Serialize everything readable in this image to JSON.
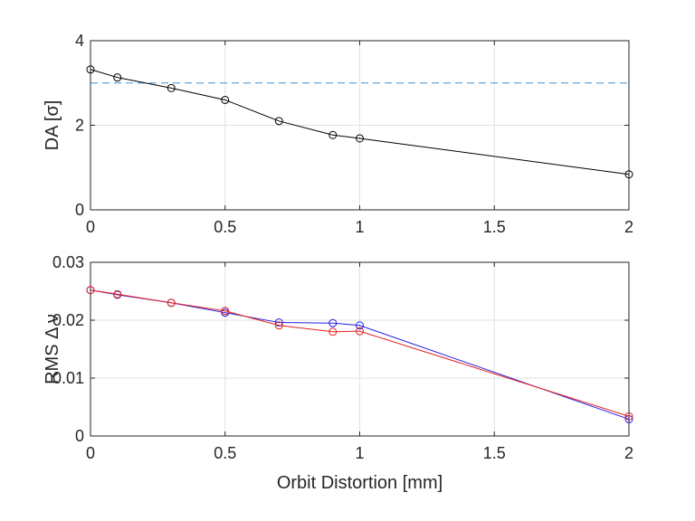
{
  "chart_data": [
    {
      "type": "line",
      "title": "",
      "xlabel": "",
      "ylabel": "DA [σ]",
      "xlim": [
        0,
        2
      ],
      "ylim": [
        0,
        4
      ],
      "xticks": [
        0,
        0.5,
        1,
        1.5,
        2
      ],
      "xtick_labels": [
        "0",
        "0.5",
        "1",
        "1.5",
        "2"
      ],
      "yticks": [
        0,
        2,
        4
      ],
      "ytick_labels": [
        "0",
        "2",
        "4"
      ],
      "grid": true,
      "reference_line": {
        "y": 3,
        "style": "dashed",
        "color": "#3d8fd1"
      },
      "series": [
        {
          "name": "DA",
          "color": "#000000",
          "x": [
            0,
            0.1,
            0.3,
            0.5,
            0.7,
            0.9,
            1.0,
            2.0
          ],
          "y": [
            3.32,
            3.13,
            2.88,
            2.6,
            2.1,
            1.77,
            1.69,
            0.84
          ]
        }
      ]
    },
    {
      "type": "line",
      "title": "",
      "xlabel": "Orbit Distortion [mm]",
      "ylabel": "RMS Δ ν",
      "xlim": [
        0,
        2
      ],
      "ylim": [
        0,
        0.03
      ],
      "xticks": [
        0,
        0.5,
        1,
        1.5,
        2
      ],
      "xtick_labels": [
        "0",
        "0.5",
        "1",
        "1.5",
        "2"
      ],
      "yticks": [
        0,
        0.01,
        0.02,
        0.03
      ],
      "ytick_labels": [
        "0",
        "0.01",
        "0.02",
        "0.03"
      ],
      "grid": true,
      "series": [
        {
          "name": "RMS Δν (blue)",
          "color": "#1f1fe6",
          "x": [
            0,
            0.1,
            0.3,
            0.5,
            0.7,
            0.9,
            1.0,
            2.0
          ],
          "y": [
            0.0252,
            0.0244,
            0.023,
            0.0213,
            0.0196,
            0.0195,
            0.0191,
            0.0029
          ]
        },
        {
          "name": "RMS Δν (red)",
          "color": "#e61f1f",
          "x": [
            0,
            0.1,
            0.3,
            0.5,
            0.7,
            0.9,
            1.0,
            2.0
          ],
          "y": [
            0.0252,
            0.0245,
            0.023,
            0.0216,
            0.0191,
            0.018,
            0.0181,
            0.0034
          ]
        }
      ]
    }
  ]
}
